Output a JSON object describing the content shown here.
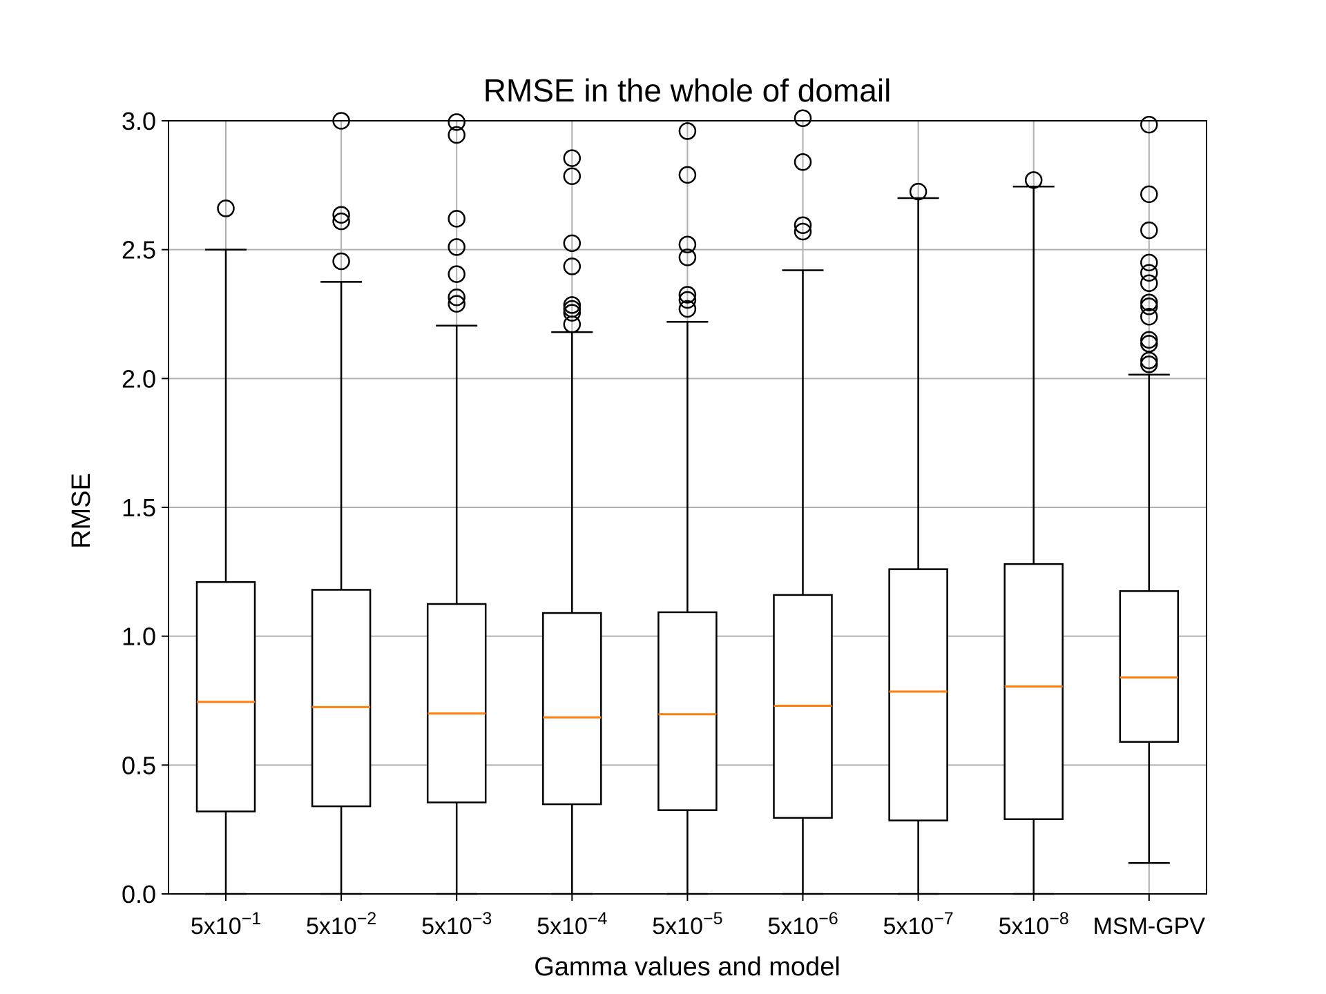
{
  "chart_data": {
    "type": "box",
    "title": "RMSE in the whole of domail",
    "xlabel": "Gamma values and model",
    "ylabel": "RMSE",
    "ylim": [
      0,
      3.0
    ],
    "yticks": [
      "0.0",
      "0.5",
      "1.0",
      "1.5",
      "2.0",
      "2.5",
      "3.0"
    ],
    "grid": true,
    "colors": {
      "box": "#000000",
      "median": "#ff7f0e",
      "grid": "#b0b0b0"
    },
    "categories": [
      {
        "base": "5x10",
        "exp": "−1"
      },
      {
        "base": "5x10",
        "exp": "−2"
      },
      {
        "base": "5x10",
        "exp": "−3"
      },
      {
        "base": "5x10",
        "exp": "−4"
      },
      {
        "base": "5x10",
        "exp": "−5"
      },
      {
        "base": "5x10",
        "exp": "−6"
      },
      {
        "base": "5x10",
        "exp": "−7"
      },
      {
        "base": "5x10",
        "exp": "−8"
      },
      {
        "base": "MSM-GPV",
        "exp": ""
      }
    ],
    "boxes": [
      {
        "whisker_low": 0.0,
        "q1": 0.32,
        "median": 0.745,
        "q3": 1.21,
        "whisker_high": 2.5,
        "outliers": [
          2.66
        ]
      },
      {
        "whisker_low": 0.0,
        "q1": 0.34,
        "median": 0.725,
        "q3": 1.18,
        "whisker_high": 2.375,
        "outliers": [
          2.455,
          2.61,
          2.635,
          3.0
        ]
      },
      {
        "whisker_low": 0.0,
        "q1": 0.355,
        "median": 0.7,
        "q3": 1.125,
        "whisker_high": 2.205,
        "outliers": [
          2.29,
          2.315,
          2.405,
          2.51,
          2.62,
          2.945,
          2.995
        ]
      },
      {
        "whisker_low": 0.0,
        "q1": 0.348,
        "median": 0.685,
        "q3": 1.09,
        "whisker_high": 2.18,
        "outliers": [
          2.21,
          2.255,
          2.27,
          2.285,
          2.435,
          2.525,
          2.785,
          2.855
        ]
      },
      {
        "whisker_low": 0.0,
        "q1": 0.325,
        "median": 0.697,
        "q3": 1.093,
        "whisker_high": 2.22,
        "outliers": [
          2.27,
          2.305,
          2.325,
          2.47,
          2.52,
          2.79,
          2.96
        ]
      },
      {
        "whisker_low": 0.0,
        "q1": 0.295,
        "median": 0.73,
        "q3": 1.16,
        "whisker_high": 2.42,
        "outliers": [
          2.57,
          2.595,
          2.84,
          3.01
        ]
      },
      {
        "whisker_low": 0.0,
        "q1": 0.285,
        "median": 0.785,
        "q3": 1.26,
        "whisker_high": 2.7,
        "outliers": [
          2.725
        ]
      },
      {
        "whisker_low": 0.0,
        "q1": 0.29,
        "median": 0.805,
        "q3": 1.28,
        "whisker_high": 2.745,
        "outliers": [
          2.77
        ]
      },
      {
        "whisker_low": 0.12,
        "q1": 0.59,
        "median": 0.84,
        "q3": 1.175,
        "whisker_high": 2.015,
        "outliers": [
          2.055,
          2.07,
          2.135,
          2.15,
          2.24,
          2.28,
          2.295,
          2.37,
          2.41,
          2.45,
          2.575,
          2.715,
          2.985
        ]
      }
    ]
  }
}
